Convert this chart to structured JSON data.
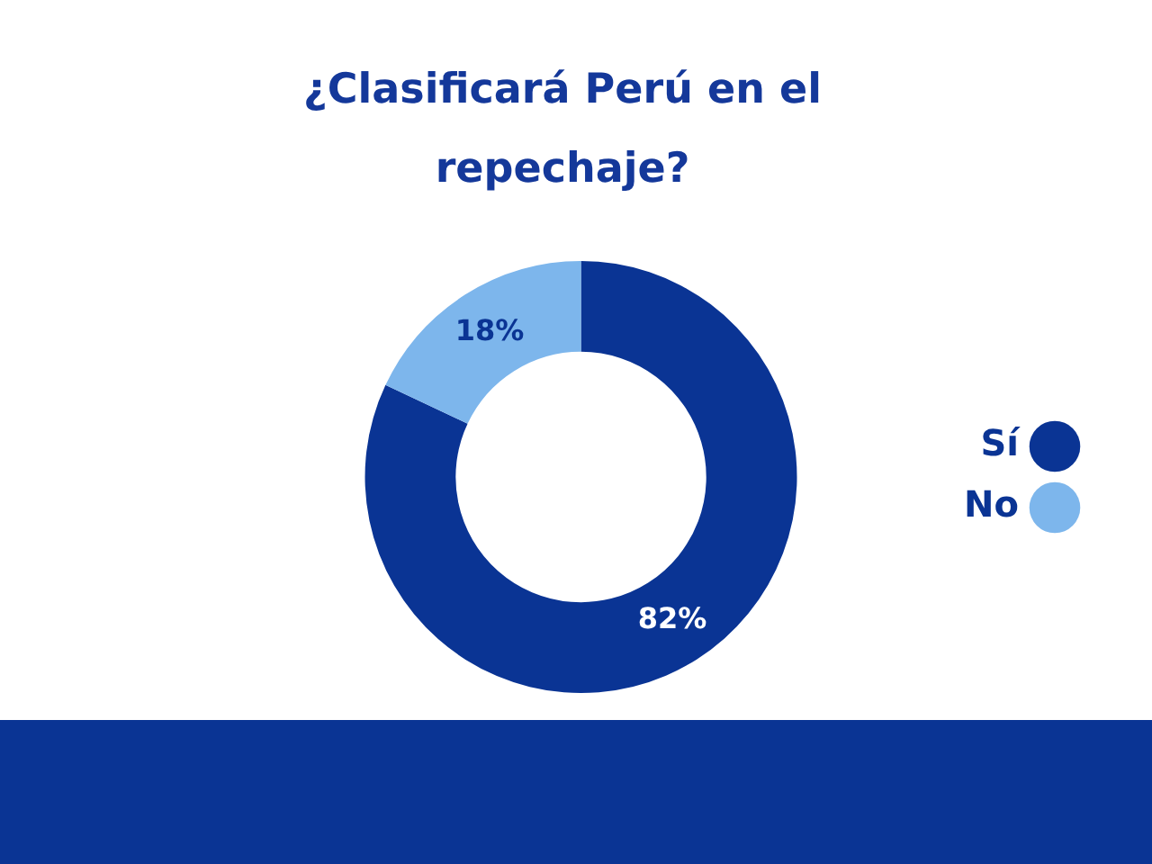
{
  "chart_data": {
    "type": "donut",
    "title": "¿Clasificará Perú en el repechaje?",
    "categories": [
      "Sí",
      "No"
    ],
    "values": [
      82,
      18
    ],
    "colors": [
      "#0a3494",
      "#7db6ec"
    ],
    "value_labels": [
      "82%",
      "18%"
    ],
    "legend": "right"
  }
}
